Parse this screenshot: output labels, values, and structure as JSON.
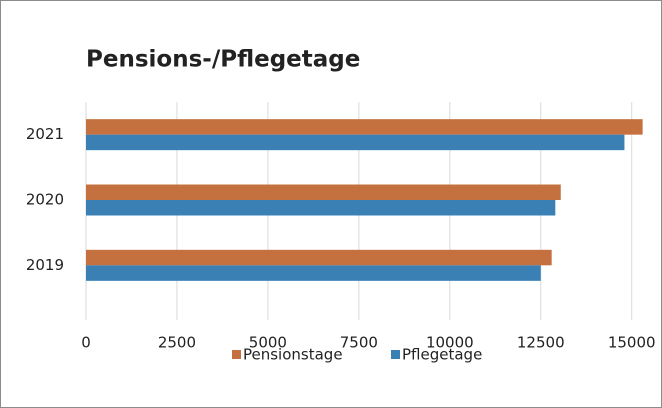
{
  "chart_data": {
    "type": "barh",
    "title": "Pensions-/Pflegetage",
    "categories": [
      "2019",
      "2020",
      "2021"
    ],
    "series": [
      {
        "name": "Pensionstage",
        "color": "#c4713f",
        "values": [
          12800,
          13050,
          15300
        ]
      },
      {
        "name": "Pflegetage",
        "color": "#3b80b5",
        "values": [
          12500,
          12900,
          14800
        ]
      }
    ],
    "xlim": [
      0,
      15750
    ],
    "xticks": [
      0,
      2500,
      5000,
      7500,
      10000,
      12500,
      15000
    ],
    "grid": true,
    "legend": "bottom"
  }
}
